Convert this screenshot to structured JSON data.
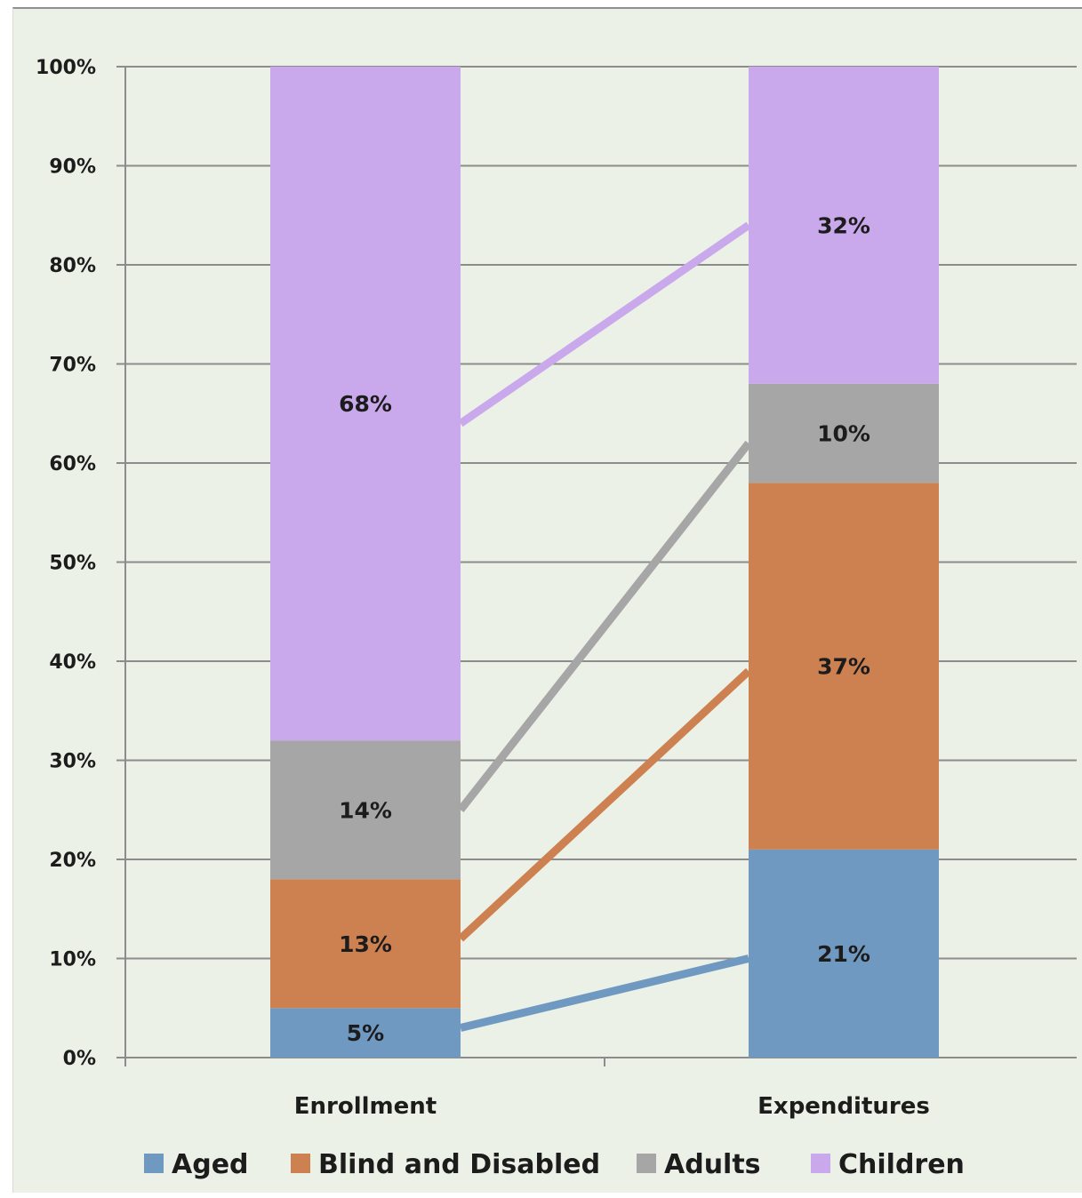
{
  "chart_data": {
    "type": "bar",
    "stacked": true,
    "percent_scale": true,
    "categories": [
      "Enrollment",
      "Expenditures"
    ],
    "series": [
      {
        "name": "Aged",
        "color": "#7099c2",
        "values": [
          5,
          21
        ],
        "labels": [
          "5%",
          "21%"
        ]
      },
      {
        "name": "Blind and Disabled",
        "color": "#cd8150",
        "values": [
          13,
          37
        ],
        "labels": [
          "13%",
          "37%"
        ]
      },
      {
        "name": "Adults",
        "color": "#a6a6a6",
        "values": [
          14,
          10
        ],
        "labels": [
          "14%",
          "10%"
        ]
      },
      {
        "name": "Children",
        "color": "#c9a8ec",
        "values": [
          68,
          32
        ],
        "labels": [
          "68%",
          "32%"
        ]
      }
    ],
    "connectors": [
      {
        "series": "Aged",
        "from_value": 3,
        "to_value": 10
      },
      {
        "series": "Blind and Disabled",
        "from_value": 12,
        "to_value": 39
      },
      {
        "series": "Adults",
        "from_value": 25,
        "to_value": 62
      },
      {
        "series": "Children",
        "from_value": 64,
        "to_value": 84
      }
    ],
    "yticks": [
      "0%",
      "10%",
      "20%",
      "30%",
      "40%",
      "50%",
      "60%",
      "70%",
      "80%",
      "90%",
      "100%"
    ],
    "ylim": [
      0,
      100
    ],
    "grid": true,
    "legend_position": "bottom",
    "title": "",
    "xlabel": "",
    "ylabel": ""
  }
}
